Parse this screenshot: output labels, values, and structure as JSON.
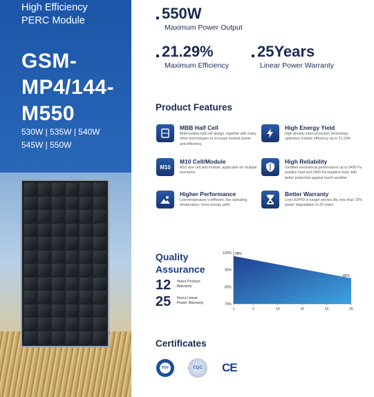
{
  "left": {
    "line1": "High Efficiency",
    "line2": "PERC Module",
    "model_line1": "GSM-",
    "model_line2": "MP4/144-",
    "model_line3": "M550",
    "watts_line1": "530W | 535W | 540W",
    "watts_line2": "545W | 550W"
  },
  "stats": {
    "power_value": "550W",
    "power_label": "Maximum Power Output",
    "eff_value": "21.29%",
    "eff_label": "Maximum Efficiency",
    "warranty_value": "25Years",
    "warranty_label": "Linear Power Warranty"
  },
  "features": {
    "title": "Product Features",
    "items": [
      {
        "icon": "half-cell-icon",
        "title": "MBB Half Cell",
        "desc": "Multi-busbar half cell design, together with many other technologies to increase module power and efficiency"
      },
      {
        "icon": "lightning-icon",
        "title": "High Energy Yield",
        "desc": "High density interconnection technology optimizes module efficiency up to 21.29%"
      },
      {
        "icon": "m10-icon",
        "title": "M10 Cell/Module",
        "desc": "M10 size cell and module, applicable for multiple scenarios"
      },
      {
        "icon": "shield-icon",
        "title": "High Reliability",
        "desc": "Certified mechanical performance up to 5400 Pa positive load and 2400 Pa negative load, with better protection against harsh weather"
      },
      {
        "icon": "landscape-icon",
        "title": "Higher Performance",
        "desc": "Low temperature coefficient, low operating temperature, more energy yield"
      },
      {
        "icon": "hourglass-icon",
        "title": "Better Warranty",
        "desc": "Low LID/PID in longer service life, less than 15% power degradation in 25 years"
      }
    ]
  },
  "quality": {
    "title_line1": "Quality",
    "title_line2": "Assurance",
    "product_years": "12",
    "product_label1": "Years Product",
    "product_label2": "Warranty",
    "power_years": "25",
    "power_label1": "Years Linear",
    "power_label2": "Power Warranty"
  },
  "chart_data": {
    "type": "area",
    "x_ticks": [
      "1",
      "5",
      "10",
      "15",
      "20",
      "25"
    ],
    "y_ticks": [
      "100%",
      "90%",
      "80%",
      "70%"
    ],
    "ylim": [
      70,
      100
    ],
    "xlim": [
      1,
      25
    ],
    "x": [
      1,
      25
    ],
    "values": [
      98,
      85
    ],
    "labels": [
      "98%",
      "85%"
    ],
    "colors": {
      "top": "#1f3f8f",
      "bottom": "#3fa3e0"
    }
  },
  "certificates": {
    "title": "Certificates",
    "tuv_text": "TÜV",
    "cqc_text": "CQC",
    "ce_text": "CE"
  }
}
